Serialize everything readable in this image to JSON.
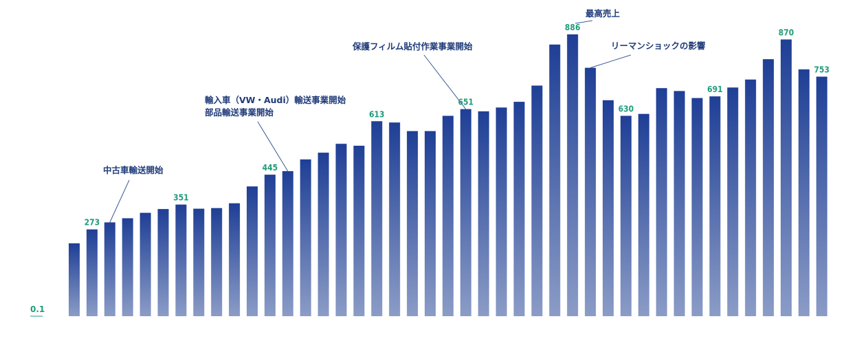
{
  "chart_data": {
    "type": "bar",
    "title": "",
    "xlabel": "",
    "ylabel": "",
    "ylim": [
      0,
      910
    ],
    "grid": false,
    "legend": "none",
    "colors": {
      "bar_top": "#1f3f96",
      "bar_bottom": "#8b9cc6",
      "label": "#1f9c7c",
      "note": "#1f3b79"
    },
    "start_label": "0.1",
    "values": [
      229,
      273,
      295,
      308,
      325,
      337,
      351,
      338,
      340,
      355,
      408,
      445,
      456,
      493,
      514,
      542,
      536,
      613,
      609,
      582,
      582,
      630,
      651,
      644,
      656,
      674,
      725,
      854,
      886,
      781,
      679,
      630,
      636,
      717,
      708,
      686,
      691,
      719,
      744,
      808,
      870,
      776,
      753
    ],
    "data_labels": [
      {
        "index": 1,
        "text": "273"
      },
      {
        "index": 6,
        "text": "351"
      },
      {
        "index": 11,
        "text": "445"
      },
      {
        "index": 17,
        "text": "613"
      },
      {
        "index": 22,
        "text": "651"
      },
      {
        "index": 28,
        "text": "886"
      },
      {
        "index": 31,
        "text": "630"
      },
      {
        "index": 36,
        "text": "691"
      },
      {
        "index": 40,
        "text": "870"
      },
      {
        "index": 42,
        "text": "753"
      }
    ],
    "annotations": [
      {
        "index": 2,
        "lines": [
          "中古車輸送開始"
        ]
      },
      {
        "index": 12,
        "lines": [
          "輸入車（VW・Audi）輸送事業開始",
          "部品輸送事業開始"
        ]
      },
      {
        "index": 22,
        "lines": [
          "保護フィルム貼付作業事業開始"
        ]
      },
      {
        "index": 28,
        "lines": [
          "最高売上"
        ]
      },
      {
        "index": 29,
        "lines": [
          "リーマンショックの影響"
        ]
      }
    ]
  }
}
